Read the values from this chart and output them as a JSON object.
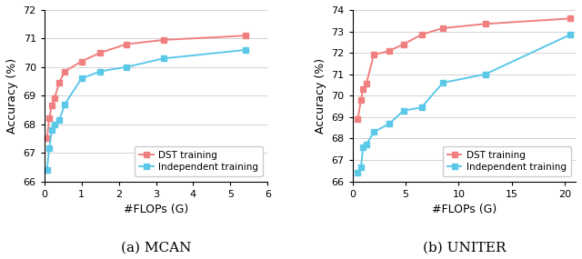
{
  "mcan": {
    "dst_flops": [
      0.07,
      0.13,
      0.2,
      0.27,
      0.4,
      0.55,
      1.0,
      1.5,
      2.2,
      3.2,
      5.4
    ],
    "dst_acc": [
      67.5,
      68.2,
      68.65,
      68.9,
      69.45,
      69.85,
      70.2,
      70.5,
      70.8,
      70.95,
      71.1
    ],
    "ind_flops": [
      0.07,
      0.13,
      0.2,
      0.27,
      0.4,
      0.55,
      1.0,
      1.5,
      2.2,
      3.2,
      5.4
    ],
    "ind_acc": [
      66.4,
      67.15,
      67.8,
      68.0,
      68.15,
      68.7,
      69.6,
      69.85,
      70.0,
      70.3,
      70.6
    ],
    "xlim": [
      0,
      6
    ],
    "ylim": [
      66,
      72
    ],
    "yticks": [
      66,
      67,
      68,
      69,
      70,
      71,
      72
    ],
    "xticks": [
      0,
      1,
      2,
      3,
      4,
      5,
      6
    ],
    "xlabel": "#FLOPs (G)",
    "ylabel": "Accuracy (%)",
    "title": "(a) MCAN"
  },
  "uniter": {
    "dst_flops": [
      0.5,
      0.8,
      1.0,
      1.3,
      2.0,
      3.5,
      4.8,
      6.5,
      8.5,
      12.5,
      20.5
    ],
    "dst_acc": [
      68.9,
      69.8,
      70.3,
      70.55,
      71.9,
      72.1,
      72.4,
      72.85,
      73.15,
      73.35,
      73.6
    ],
    "ind_flops": [
      0.5,
      0.8,
      1.0,
      1.3,
      2.0,
      3.5,
      4.8,
      6.5,
      8.5,
      12.5,
      20.5
    ],
    "ind_acc": [
      66.4,
      66.65,
      67.6,
      67.7,
      68.3,
      68.7,
      69.3,
      69.45,
      70.6,
      71.0,
      72.85
    ],
    "xlim": [
      0,
      21
    ],
    "ylim": [
      66,
      74
    ],
    "yticks": [
      66,
      67,
      68,
      69,
      70,
      71,
      72,
      73,
      74
    ],
    "xticks": [
      0,
      5,
      10,
      15,
      20
    ],
    "xlabel": "#FLOPs (G)",
    "ylabel": "Accuracy (%)",
    "title": "(b) UNITER"
  },
  "dst_color": "#f08080",
  "ind_color": "#5bc8e8",
  "dst_label": "DST training",
  "ind_label": "Independent training",
  "marker": "s",
  "markersize": 4.0,
  "linewidth": 1.4,
  "legend_fontsize": 7.5,
  "tick_fontsize": 8,
  "label_fontsize": 9,
  "title_fontsize": 11
}
